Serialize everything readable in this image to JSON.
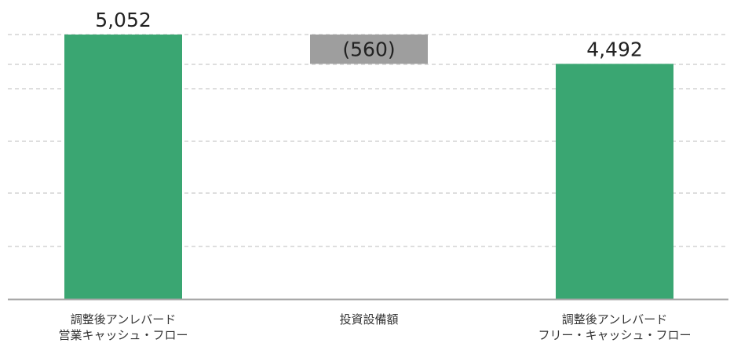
{
  "chart_data": {
    "type": "bar",
    "subtype": "waterfall",
    "categories": [
      [
        "調整後アンレバード",
        "営業キャッシュ・フロー"
      ],
      [
        "投資設備額"
      ],
      [
        "調整後アンレバード",
        "フリー・キャッシュ・フロー"
      ]
    ],
    "values": [
      5052,
      -560,
      4492
    ],
    "value_labels": [
      "5,052",
      "(560)",
      "4,492"
    ],
    "bar_kinds": [
      "total",
      "delta",
      "total"
    ],
    "title": "",
    "xlabel": "",
    "ylabel": "",
    "ylim": [
      0,
      5052
    ],
    "grid": true,
    "legend": "none"
  },
  "colors": {
    "total": "#3aa672",
    "delta": "#9e9e9e",
    "grid": "#c9c9c9",
    "baseline": "#a6a6a6",
    "text": "#222222"
  }
}
